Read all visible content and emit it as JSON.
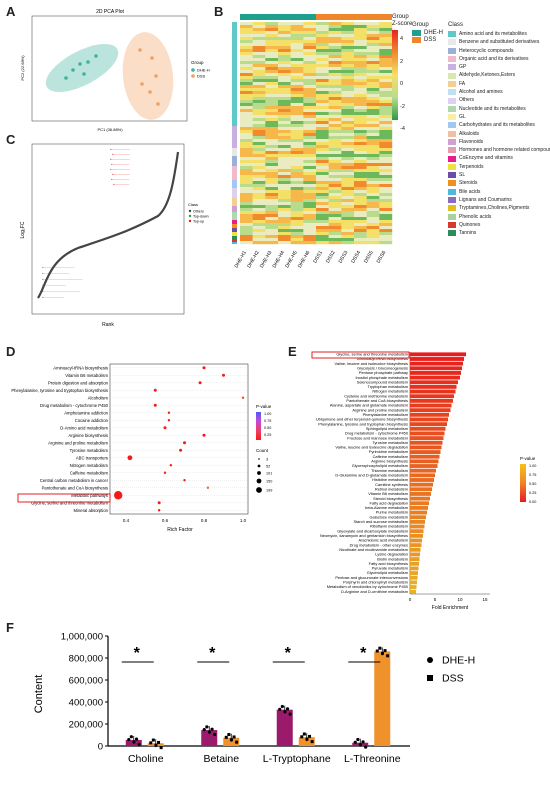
{
  "panels": {
    "A": {
      "letter": "A",
      "title": "2D PCA Plot",
      "xlabel": "PC1 (36.88%)",
      "ylabel": "PC2 (22.68%)",
      "legend_title": "Group",
      "groups": [
        {
          "name": "DHE-H",
          "color": "#3cb59a"
        },
        {
          "name": "DSS",
          "color": "#f0a060"
        }
      ]
    },
    "B": {
      "letter": "B",
      "zscore_title": "Group",
      "zscore_label": "Z-score",
      "zscore_ticks": [
        "4",
        "2",
        "0",
        "-2",
        "-4"
      ],
      "group_legend_title": "Group",
      "groups": [
        {
          "name": "DHE-H",
          "color": "#20a08c"
        },
        {
          "name": "DSS",
          "color": "#f0862c"
        }
      ],
      "class_title": "Class",
      "classes": [
        {
          "name": "Amino acid and its metabolites",
          "color": "#5fc8c8"
        },
        {
          "name": "Benzene and substituted derivatives",
          "color": "#e8e8e8"
        },
        {
          "name": "Heterocyclic compounds",
          "color": "#9ab0d8"
        },
        {
          "name": "Organic acid and its derivatives",
          "color": "#f2b8cc"
        },
        {
          "name": "GP",
          "color": "#c8b0e0"
        },
        {
          "name": "Aldehyde,Ketones,Esters",
          "color": "#d8e8b0"
        },
        {
          "name": "FA",
          "color": "#f4d090"
        },
        {
          "name": "Alcohol and amines",
          "color": "#c0e0f0"
        },
        {
          "name": "Others",
          "color": "#e0d0f0"
        },
        {
          "name": "Nucleotide and its metabolites",
          "color": "#b0d8b0"
        },
        {
          "name": "GL",
          "color": "#f8f0a0"
        },
        {
          "name": "Carbohydrates and its metabolites",
          "color": "#a0c8f0"
        },
        {
          "name": "Alkaloids",
          "color": "#f0c0a0"
        },
        {
          "name": "Flavonoids",
          "color": "#d0a0d0"
        },
        {
          "name": "Hormones and hormone related compounds",
          "color": "#e0a0b0"
        },
        {
          "name": "CoEnzyme and vitamins",
          "color": "#e81c8c"
        },
        {
          "name": "Terpenoids",
          "color": "#f0e040"
        },
        {
          "name": "SL",
          "color": "#6c4ca8"
        },
        {
          "name": "Steroids",
          "color": "#f09020"
        },
        {
          "name": "Bile acids",
          "color": "#50b8e0"
        },
        {
          "name": "Lignans and Coumarins",
          "color": "#8c6cc0"
        },
        {
          "name": "Tryptamines,Cholines,Pigments",
          "color": "#e0c020"
        },
        {
          "name": "Phenolic acids",
          "color": "#a8d0a0"
        },
        {
          "name": "Quinones",
          "color": "#d83830"
        },
        {
          "name": "Tannins",
          "color": "#2c8c5c"
        }
      ],
      "sample_labels": [
        "DHE-H1",
        "DHE-H2",
        "DHE-H3",
        "DHE-H4",
        "DHE-H5",
        "DHE-H6",
        "DSS1",
        "DSS2",
        "DSS3",
        "DSS4",
        "DSS5",
        "DSS6"
      ]
    },
    "C": {
      "letter": "C",
      "xlabel": "Rank",
      "ylabel": "Log₂FC",
      "legend_title": "Class",
      "legend_items": [
        "Others",
        "Top-down",
        "Top-up"
      ]
    },
    "D": {
      "letter": "D",
      "xlabel": "Rich Factor",
      "x_ticks": [
        "0.4",
        "0.6",
        "0.8",
        "1.0"
      ],
      "pathways": [
        "Aminoacyl-tRNA biosynthesis",
        "Vitamin B6 metabolism",
        "Protein digestion and absorption",
        "Phenylalanine, tyrosine and tryptophan biosynthesis",
        "Alcoholism",
        "Drug metabolism - cytochrome P450",
        "Amphetamine addiction",
        "Cocaine addiction",
        "D-Amino acid metabolism",
        "Arginine biosynthesis",
        "Arginine and proline metabolism",
        "Tyrosine metabolism",
        "ABC transporters",
        "Nitrogen metabolism",
        "Caffeine metabolism",
        "Central carbon metabolism in cancer",
        "Pantothenate and CoA biosynthesis",
        "Metabolic pathways",
        "Glycine, serine and threonine metabolism",
        "Mineral absorption"
      ],
      "highlight": "Glycine, serine and threonine metabolism",
      "pvalue_title": "P-value",
      "pvalue_ticks": [
        "1.00",
        "0.75",
        "0.50",
        "0.25"
      ],
      "count_title": "Count",
      "count_ticks": [
        "3",
        "52",
        "101",
        "150",
        "199"
      ]
    },
    "E": {
      "letter": "E",
      "xlabel": "Fold Enrichment",
      "x_ticks": [
        "0",
        "5",
        "10",
        "15"
      ],
      "pathways": [
        "Glycine, serine and threonine metabolism",
        "Aminoacyl-tRNA biosynthesis",
        "Valine, leucine and isoleucine biosynthesis",
        "Glycolysis / Gluconeogenesis",
        "Pentose phosphate pathway",
        "Inositol phosphate metabolism",
        "Selenocompound metabolism",
        "Tryptophan metabolism",
        "Nitrogen metabolism",
        "Cysteine and methionine metabolism",
        "Pantothenate and CoA biosynthesis",
        "Alanine, aspartate and glutamate metabolism",
        "Arginine and proline metabolism",
        "Phenylalanine metabolism",
        "Ubiquinone and other terpenoid-quinone biosynthesis",
        "Phenylalanine, tyrosine and tryptophan biosynthesis",
        "Sphingolipid metabolism",
        "Drug metabolism - cytochrome P450",
        "Fructose and mannose metabolism",
        "Tyrosine metabolism",
        "Valine, leucine and isoleucine degradation",
        "Pyrimidine metabolism",
        "Caffeine metabolism",
        "Arginine biosynthesis",
        "Glycerophospholipid metabolism",
        "Thiamine metabolism",
        "D-Glutamine and D-glutamate metabolism",
        "Histidine metabolism",
        "Carnitine synthesis",
        "Retinol metabolism",
        "Vitamin B6 metabolism",
        "Steroid biosynthesis",
        "Fatty acid degradation",
        "beta-Alanine metabolism",
        "Purine metabolism",
        "Galactose metabolism",
        "Starch and sucrose metabolism",
        "Riboflavin metabolism",
        "Glyoxylate and dicarboxylate metabolism",
        "Neomycin, kanamycin and gentamicin biosynthesis",
        "Arachidonic acid metabolism",
        "Drug metabolism - other enzymes",
        "Nicotinate and nicotinamide metabolism",
        "Lysine degradation",
        "Biotin metabolism",
        "Fatty acid biosynthesis",
        "Pyruvate metabolism",
        "Glycerolipid metabolism",
        "Pentose and glucuronate interconversions",
        "Porphyrin and chlorophyll metabolism",
        "Metabolism of xenobiotics by cytochrome P450",
        "D-Arginine and D-ornithine metabolism"
      ],
      "fold": [
        11.2,
        10.8,
        10.6,
        10.4,
        10.2,
        10.0,
        9.6,
        9.3,
        9.1,
        8.8,
        8.6,
        8.3,
        8.1,
        7.8,
        7.6,
        7.4,
        7.1,
        6.9,
        6.7,
        6.5,
        6.3,
        6.1,
        5.9,
        5.7,
        5.5,
        5.2,
        5.0,
        4.8,
        4.6,
        4.4,
        4.2,
        4.0,
        3.8,
        3.6,
        3.4,
        3.2,
        3.0,
        2.9,
        2.7,
        2.6,
        2.4,
        2.3,
        2.1,
        2.0,
        1.9,
        1.8,
        1.7,
        1.6,
        1.5,
        1.4,
        1.3,
        1.2
      ],
      "highlight": "Glycine, serine and threonine metabolism",
      "pvalue_title": "P-value",
      "pvalue_ticks": [
        "1.00",
        "0.75",
        "0.50",
        "0.25",
        "0.00"
      ]
    },
    "F": {
      "letter": "F"
    }
  },
  "chart_data": {
    "type": "bar",
    "categories": [
      "Choline",
      "Betaine",
      "L-Tryptophane",
      "L-Threonine"
    ],
    "series": [
      {
        "name": "DHE-H",
        "values": [
          55000,
          145000,
          330000,
          30000
        ],
        "color": "#9c1a6c",
        "marker": "circle"
      },
      {
        "name": "DSS",
        "values": [
          25000,
          75000,
          80000,
          860000
        ],
        "color": "#f0922c",
        "marker": "square"
      }
    ],
    "ylabel": "Content",
    "ylim": [
      0,
      1000000
    ],
    "y_ticks": [
      "0",
      "200,000",
      "400,000",
      "600,000",
      "800,000",
      "1,000,000"
    ],
    "significance": [
      "*",
      "*",
      "*",
      "*"
    ],
    "legend": "right"
  }
}
